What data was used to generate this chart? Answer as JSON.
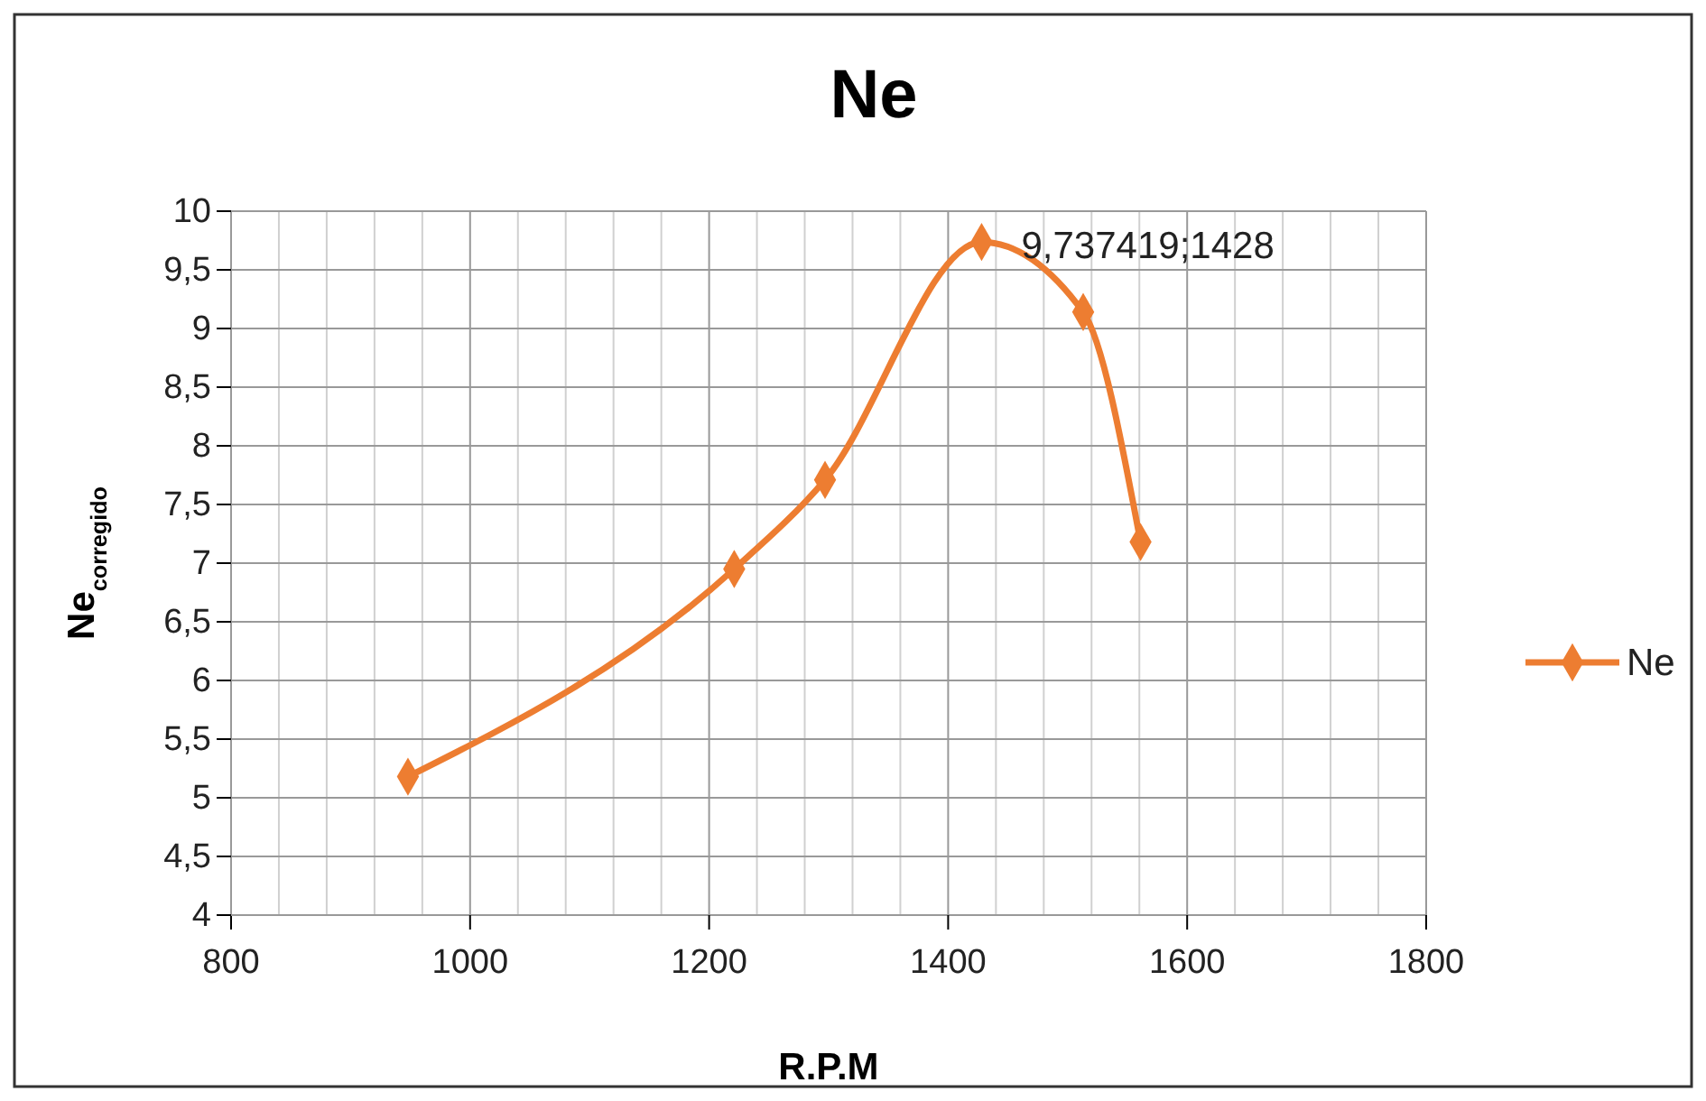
{
  "chart_data": {
    "type": "line",
    "title": "Ne",
    "xlabel": "R.P.M",
    "ylabel": "Ne$_{corregido}$",
    "x": [
      948,
      1221,
      1297,
      1428,
      1513,
      1561
    ],
    "series": [
      {
        "name": "Ne",
        "color": "#ed7d31",
        "values": [
          5.18,
          6.95,
          7.71,
          9.737419,
          9.14,
          7.18
        ]
      }
    ],
    "xlim": [
      800,
      1800
    ],
    "xticks": [
      800,
      {
        "value": 840,
        "label": null
      },
      {
        "value": 880,
        "label": null
      },
      {
        "value": 920,
        "label": null
      },
      {
        "value": 960,
        "label": null
      },
      1000,
      {
        "value": 1040,
        "label": null
      },
      {
        "value": 1080,
        "label": null
      },
      {
        "value": 1120,
        "label": null
      },
      {
        "value": 1160,
        "label": null
      },
      1200,
      {
        "value": 1240,
        "label": null
      },
      {
        "value": 1280,
        "label": null
      },
      {
        "value": 1320,
        "label": null
      },
      {
        "value": 1360,
        "label": null
      },
      1400,
      {
        "value": 1440,
        "label": null
      },
      {
        "value": 1480,
        "label": null
      },
      {
        "value": 1520,
        "label": null
      },
      {
        "value": 1560,
        "label": null
      },
      1600,
      {
        "value": 1640,
        "label": null
      },
      {
        "value": 1680,
        "label": null
      },
      {
        "value": 1720,
        "label": null
      },
      {
        "value": 1760,
        "label": null
      },
      1800
    ],
    "ylim": [
      4,
      10
    ],
    "yticks": [
      4,
      {
        "value": 4.5,
        "label": "4,5"
      },
      5,
      {
        "value": 5.5,
        "label": "5,5"
      },
      6,
      {
        "value": 6.5,
        "label": "6,5"
      },
      7,
      {
        "value": 7.5,
        "label": "7,5"
      },
      8,
      {
        "value": 8.5,
        "label": "8,5"
      },
      9,
      {
        "value": 9.5,
        "label": "9,5"
      },
      10
    ],
    "annotations": [
      {
        "text": "9,737419;1428",
        "x": 1428,
        "y": 9.737419
      }
    ],
    "grid": true,
    "legend": "right",
    "marker": "diamond",
    "line_style": "solid"
  }
}
